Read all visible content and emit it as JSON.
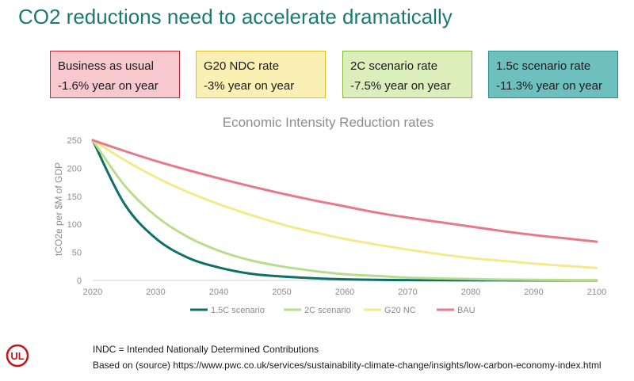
{
  "page": {
    "title": "CO2 reductions need to accelerate dramatically",
    "boxes": [
      {
        "line1": "Business as usual",
        "line2": "-1.6% year on year"
      },
      {
        "line1": "G20 NDC rate",
        "line2": "-3% year on year"
      },
      {
        "line1": "2C scenario rate",
        "line2": "-7.5% year on year"
      },
      {
        "line1": "1.5c scenario rate",
        "line2": "-11.3% year on year"
      }
    ],
    "notes": [
      "INDC = Intended Nationally Determined Contributions",
      "Based on (source) https://www.pwc.co.uk/services/sustainability-climate-change/insights/low-carbon-economy-index.html"
    ],
    "logo_text": "UL",
    "logo_color": "#c4161c"
  },
  "chart_data": {
    "type": "line",
    "title": "Economic Intensity Reduction rates",
    "xlabel": "",
    "ylabel": "tCO2e per $M of GDP",
    "xlim": [
      2020,
      2100
    ],
    "ylim": [
      0,
      250
    ],
    "x_ticks": [
      "2020",
      "2030",
      "2040",
      "2050",
      "2060",
      "2070",
      "2080",
      "2090",
      "2100"
    ],
    "y_ticks": [
      "0",
      "50",
      "100",
      "150",
      "200",
      "250"
    ],
    "grid": false,
    "legend": "bottom",
    "x": [
      2020,
      2025,
      2030,
      2035,
      2040,
      2045,
      2050,
      2055,
      2060,
      2065,
      2070,
      2075,
      2080,
      2085,
      2090,
      2095,
      2100
    ],
    "series": [
      {
        "name": "1.5C scenario",
        "color": "#0f6f68",
        "values": [
          250,
          137,
          75,
          41,
          23,
          12,
          7,
          4,
          2,
          1,
          0.6,
          0.3,
          0.2,
          0.1,
          0.05,
          0.03,
          0.02
        ]
      },
      {
        "name": "2C scenario",
        "color": "#b9dd8c",
        "values": [
          250,
          170,
          115,
          78,
          53,
          36,
          25,
          17,
          11,
          8,
          5,
          3.5,
          2.4,
          1.6,
          1.1,
          0.7,
          0.5
        ]
      },
      {
        "name": "G20 NC",
        "color": "#f6e98c",
        "values": [
          250,
          215,
          184,
          158,
          136,
          117,
          100,
          86,
          74,
          64,
          55,
          47,
          40,
          35,
          30,
          26,
          22
        ]
      },
      {
        "name": "BAU",
        "color": "#e8788c",
        "values": [
          250,
          231,
          213,
          197,
          182,
          168,
          155,
          143,
          132,
          121,
          112,
          104,
          96,
          88,
          81,
          75,
          69
        ]
      }
    ]
  }
}
